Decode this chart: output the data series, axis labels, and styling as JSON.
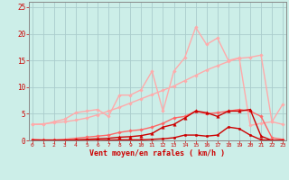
{
  "bg_color": "#cceee8",
  "grid_color": "#aacccc",
  "x_values": [
    0,
    1,
    2,
    3,
    4,
    5,
    6,
    7,
    8,
    9,
    10,
    11,
    12,
    13,
    14,
    15,
    16,
    17,
    18,
    19,
    20,
    21,
    22,
    23
  ],
  "xlabel": "Vent moyen/en rafales ( km/h )",
  "xlabel_color": "#cc0000",
  "tick_color": "#cc0000",
  "yticks": [
    0,
    5,
    10,
    15,
    20,
    25
  ],
  "line_diag": {
    "y": [
      3.0,
      3.1,
      3.3,
      3.5,
      3.8,
      4.2,
      4.8,
      5.5,
      6.2,
      7.0,
      7.8,
      8.6,
      9.4,
      10.2,
      11.2,
      12.2,
      13.2,
      14.0,
      14.8,
      15.4,
      15.6,
      16.0,
      3.5,
      6.8
    ],
    "color": "#ffaaaa",
    "lw": 1.0,
    "marker": "D",
    "ms": 1.8
  },
  "line_peak": {
    "y": [
      3.0,
      3.0,
      3.5,
      4.0,
      5.2,
      5.5,
      5.8,
      4.5,
      8.5,
      8.5,
      9.5,
      13.0,
      5.5,
      13.0,
      15.5,
      21.2,
      18.0,
      19.2,
      15.0,
      15.5,
      2.8,
      3.2,
      3.5,
      3.0
    ],
    "color": "#ffaaaa",
    "lw": 1.0,
    "marker": "D",
    "ms": 1.8
  },
  "line_mid": {
    "y": [
      0.2,
      0.1,
      0.1,
      0.2,
      0.4,
      0.6,
      0.8,
      1.0,
      1.5,
      1.8,
      2.0,
      2.5,
      3.2,
      4.2,
      4.5,
      5.5,
      5.0,
      5.2,
      5.5,
      5.8,
      5.5,
      4.5,
      0.5,
      0.2
    ],
    "color": "#ff6666",
    "lw": 1.0,
    "marker": "D",
    "ms": 1.8
  },
  "line_tri": {
    "y": [
      0.0,
      0.0,
      0.0,
      0.0,
      0.1,
      0.2,
      0.3,
      0.4,
      0.6,
      0.7,
      0.9,
      1.3,
      2.5,
      3.0,
      4.2,
      5.5,
      5.2,
      4.5,
      5.5,
      5.5,
      5.8,
      0.8,
      0.0,
      0.0
    ],
    "color": "#cc0000",
    "lw": 1.0,
    "marker": "^",
    "ms": 2.5
  },
  "line_dot": {
    "y": [
      0.0,
      0.0,
      0.0,
      0.0,
      0.0,
      0.0,
      0.0,
      0.05,
      0.1,
      0.1,
      0.1,
      0.2,
      0.3,
      0.5,
      1.0,
      1.0,
      0.8,
      1.0,
      2.5,
      2.2,
      1.0,
      0.1,
      0.0,
      0.0
    ],
    "color": "#cc0000",
    "lw": 1.0,
    "marker": "o",
    "ms": 1.8
  },
  "ylim": [
    0,
    26
  ],
  "xlim": [
    -0.3,
    23.3
  ]
}
